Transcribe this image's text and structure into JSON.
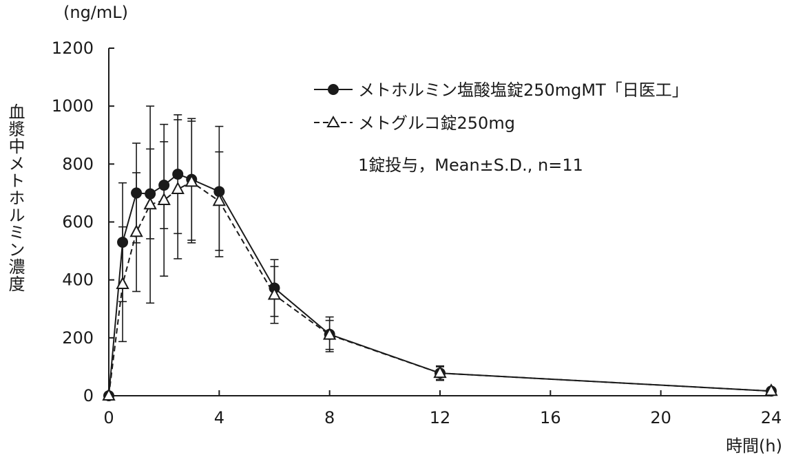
{
  "chart_data": {
    "type": "line",
    "title": "",
    "ylabel": "血漿中メトホルミン濃度",
    "yunit": "(ng/mL)",
    "xlabel": "時間(h)",
    "xlim": [
      0,
      24
    ],
    "ylim": [
      0,
      1200
    ],
    "xticks": [
      0,
      4,
      8,
      12,
      16,
      20,
      24
    ],
    "yticks": [
      0,
      200,
      400,
      600,
      800,
      1000,
      1200
    ],
    "grid": false,
    "legend_position": "top-right",
    "annotation": "1錠投与，Mean±S.D., n=11",
    "series": [
      {
        "name": "メトホルミン塩酸塩錠250mgMT「日医工」",
        "marker": "filled-circle",
        "line": "solid",
        "x": [
          0,
          0.5,
          1,
          1.5,
          2,
          2.5,
          3,
          4,
          6,
          8,
          12,
          24
        ],
        "y": [
          0,
          530,
          700,
          697,
          727,
          765,
          747,
          705,
          372,
          212,
          78,
          16
        ],
        "sd": [
          0,
          205,
          172,
          155,
          150,
          205,
          210,
          225,
          98,
          60,
          25,
          5
        ]
      },
      {
        "name": "メトグルコ錠250mg",
        "marker": "open-triangle",
        "line": "dashed",
        "x": [
          0,
          0.5,
          1,
          1.5,
          2,
          2.5,
          3,
          4,
          6,
          8,
          12,
          24
        ],
        "y": [
          0,
          385,
          565,
          660,
          675,
          713,
          738,
          672,
          348,
          210,
          78,
          16
        ],
        "sd": [
          0,
          198,
          205,
          340,
          262,
          240,
          210,
          170,
          98,
          50,
          22,
          5
        ]
      }
    ]
  }
}
